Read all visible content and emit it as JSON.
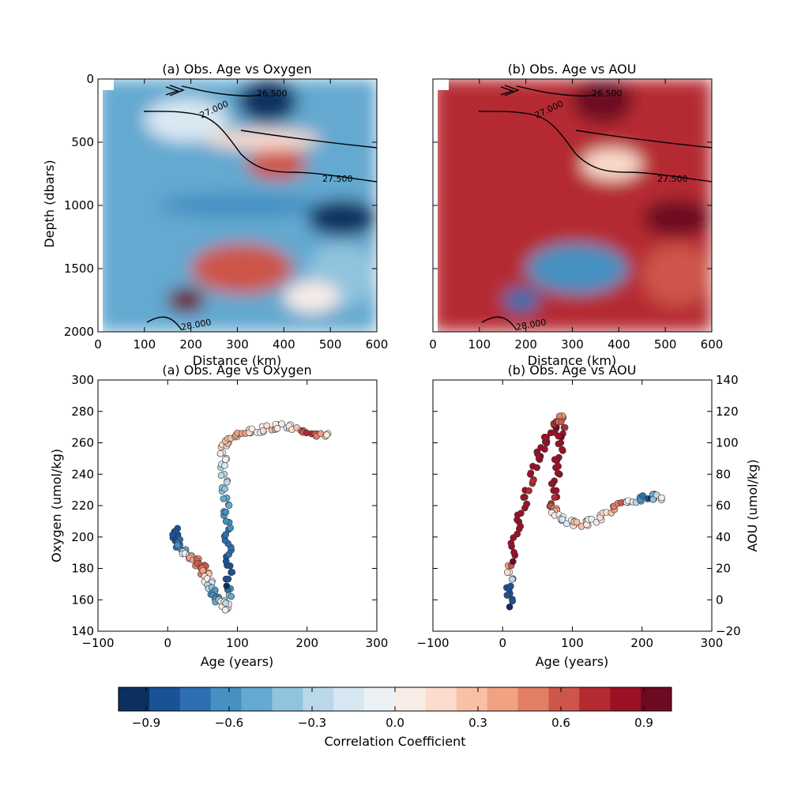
{
  "chart_data": [
    {
      "type": "heatmap",
      "title": "(a) Obs. Age vs Oxygen",
      "xlabel": "Distance (km)",
      "ylabel": "Depth (dbars)",
      "xlim": [
        0,
        600
      ],
      "ylim": [
        2000,
        0
      ],
      "xticks": [
        "0",
        "100",
        "200",
        "300",
        "400",
        "500",
        "600"
      ],
      "yticks": [
        "0",
        "500",
        "1000",
        "1500",
        "2000"
      ],
      "colormap": "RdBu_r",
      "value_range": [
        -1,
        1
      ],
      "contour_labels": [
        "26.500",
        "27.000",
        "27.500",
        "28.000"
      ],
      "regions": [
        {
          "distance": [
            300,
            430
          ],
          "depth": [
            0,
            350
          ],
          "correlation": -0.9
        },
        {
          "distance": [
            100,
            280
          ],
          "depth": [
            150,
            500
          ],
          "correlation": -0.2
        },
        {
          "distance": [
            320,
            450
          ],
          "depth": [
            550,
            800
          ],
          "correlation": 0.6
        },
        {
          "distance": [
            230,
            480
          ],
          "depth": [
            400,
            560
          ],
          "correlation": 0.2
        },
        {
          "distance": [
            130,
            480
          ],
          "depth": [
            900,
            1100
          ],
          "correlation": -0.6
        },
        {
          "distance": [
            450,
            600
          ],
          "depth": [
            950,
            1250
          ],
          "correlation": -0.9
        },
        {
          "distance": [
            200,
            420
          ],
          "depth": [
            1300,
            1700
          ],
          "correlation": 0.6
        },
        {
          "distance": [
            450,
            600
          ],
          "depth": [
            1300,
            1800
          ],
          "correlation": -0.4
        },
        {
          "distance": [
            150,
            230
          ],
          "depth": [
            1650,
            1850
          ],
          "correlation": 0.9
        },
        {
          "distance": [
            400,
            520
          ],
          "depth": [
            1600,
            1850
          ],
          "correlation": 0.1
        }
      ]
    },
    {
      "type": "heatmap",
      "title": "(b) Obs. Age vs AOU",
      "xlabel": "Distance (km)",
      "ylabel": "",
      "xlim": [
        0,
        600
      ],
      "ylim": [
        2000,
        0
      ],
      "xticks": [
        "0",
        "100",
        "200",
        "300",
        "400",
        "500",
        "600"
      ],
      "yticks": [],
      "colormap": "RdBu_r",
      "value_range": [
        -1,
        1
      ],
      "contour_labels": [
        "26.500",
        "27.000",
        "27.500",
        "28.000"
      ],
      "regions": [
        {
          "distance": [
            300,
            430
          ],
          "depth": [
            0,
            350
          ],
          "correlation": 0.9
        },
        {
          "distance": [
            100,
            280
          ],
          "depth": [
            150,
            500
          ],
          "correlation": 0.7
        },
        {
          "distance": [
            320,
            450
          ],
          "depth": [
            550,
            800
          ],
          "correlation": 0.2
        },
        {
          "distance": [
            130,
            480
          ],
          "depth": [
            900,
            1100
          ],
          "correlation": 0.7
        },
        {
          "distance": [
            450,
            600
          ],
          "depth": [
            950,
            1250
          ],
          "correlation": 0.9
        },
        {
          "distance": [
            200,
            420
          ],
          "depth": [
            1300,
            1700
          ],
          "correlation": -0.6
        },
        {
          "distance": [
            450,
            600
          ],
          "depth": [
            1300,
            1800
          ],
          "correlation": 0.6
        },
        {
          "distance": [
            150,
            230
          ],
          "depth": [
            1650,
            1850
          ],
          "correlation": -0.7
        }
      ]
    },
    {
      "type": "scatter",
      "title": "(a) Obs. Age vs Oxygen",
      "xlabel": "Age (years)",
      "ylabel": "Oxygen (umol/kg)",
      "xlim": [
        -100,
        300
      ],
      "ylim": [
        140,
        300
      ],
      "xticks": [
        "−100",
        "0",
        "100",
        "200",
        "300"
      ],
      "yticks": [
        "140",
        "160",
        "180",
        "200",
        "220",
        "240",
        "260",
        "280",
        "300"
      ],
      "series": [
        {
          "values": [
            [
              10,
              205,
              -0.9
            ],
            [
              12,
              198,
              -0.8
            ],
            [
              20,
              192,
              -0.6
            ],
            [
              30,
              188,
              0.2
            ],
            [
              40,
              185,
              0.5
            ],
            [
              50,
              180,
              0.6
            ],
            [
              55,
              175,
              0.3
            ],
            [
              60,
              170,
              -0.2
            ],
            [
              65,
              165,
              -0.5
            ],
            [
              70,
              160,
              -0.7
            ],
            [
              80,
              158,
              0.1
            ],
            [
              85,
              155,
              0.0
            ],
            [
              88,
              170,
              -0.9
            ],
            [
              88,
              185,
              -0.8
            ],
            [
              86,
              200,
              -0.7
            ],
            [
              85,
              215,
              -0.6
            ],
            [
              82,
              230,
              -0.4
            ],
            [
              80,
              245,
              -0.2
            ],
            [
              80,
              258,
              0.2
            ],
            [
              90,
              263,
              0.3
            ],
            [
              110,
              267,
              0.4
            ],
            [
              130,
              268,
              -0.1
            ],
            [
              150,
              270,
              0.3
            ],
            [
              170,
              271,
              -0.2
            ],
            [
              190,
              268,
              0.5
            ],
            [
              210,
              265,
              0.8
            ],
            [
              228,
              265,
              0.0
            ]
          ]
        }
      ]
    },
    {
      "type": "scatter",
      "title": "(b) Obs. Age vs AOU",
      "xlabel": "Age (years)",
      "ylabel": "AOU (umol/kg)",
      "xlim": [
        -100,
        300
      ],
      "ylim": [
        -20,
        140
      ],
      "xticks": [
        "−100",
        "0",
        "100",
        "200",
        "300"
      ],
      "yticks": [
        "−20",
        "0",
        "20",
        "40",
        "60",
        "80",
        "100",
        "120",
        "140"
      ],
      "series": [
        {
          "values": [
            [
              10,
              -3,
              -0.9
            ],
            [
              10,
              10,
              -0.8
            ],
            [
              12,
              25,
              0.9
            ],
            [
              20,
              45,
              0.8
            ],
            [
              30,
              60,
              0.9
            ],
            [
              40,
              75,
              0.7
            ],
            [
              50,
              90,
              0.9
            ],
            [
              60,
              100,
              0.8
            ],
            [
              75,
              110,
              0.9
            ],
            [
              85,
              118,
              0.4
            ],
            [
              85,
              105,
              0.9
            ],
            [
              80,
              90,
              0.8
            ],
            [
              75,
              75,
              0.9
            ],
            [
              72,
              60,
              0.7
            ],
            [
              75,
              55,
              0.1
            ],
            [
              90,
              50,
              -0.2
            ],
            [
              110,
              48,
              0.3
            ],
            [
              130,
              50,
              -0.1
            ],
            [
              150,
              55,
              0.2
            ],
            [
              170,
              62,
              0.6
            ],
            [
              190,
              63,
              -0.3
            ],
            [
              210,
              66,
              -0.9
            ],
            [
              228,
              65,
              0.0
            ]
          ]
        }
      ]
    }
  ],
  "colorbar": {
    "label": "Correlation Coefficient",
    "ticks": [
      "−0.9",
      "−0.6",
      "−0.3",
      "0.0",
      "0.3",
      "0.6",
      "0.9"
    ],
    "tick_values": [
      -0.9,
      -0.6,
      -0.3,
      0.0,
      0.3,
      0.6,
      0.9
    ],
    "range": [
      -1,
      1
    ],
    "colors": [
      "#0b3060",
      "#1a5296",
      "#2d6fb1",
      "#4591c2",
      "#64a9d0",
      "#91c3de",
      "#b9d8e9",
      "#d8e8f2",
      "#ecf1f5",
      "#f8ece7",
      "#fbdcce",
      "#f8c1a6",
      "#f1a283",
      "#e37e66",
      "#cd554a",
      "#b52a31",
      "#9c1026",
      "#6d0a21"
    ]
  }
}
